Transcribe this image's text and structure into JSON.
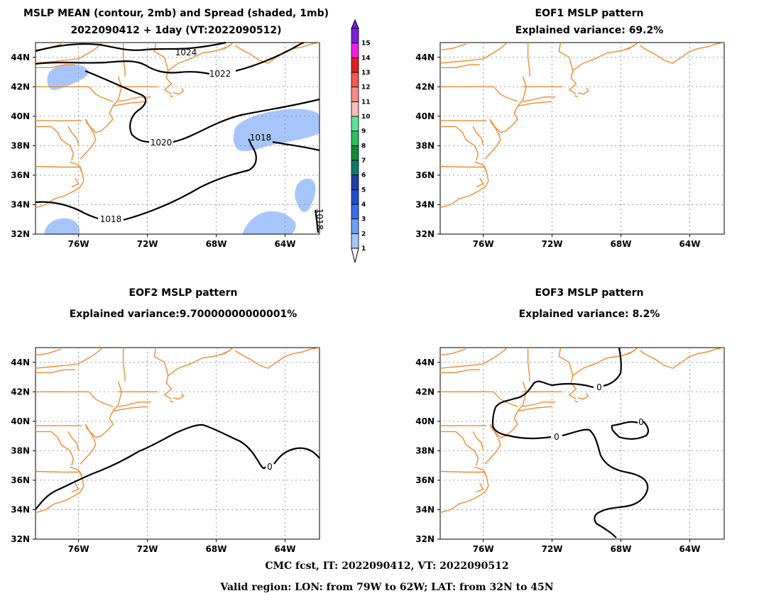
{
  "panels": [
    {
      "title1": "MSLP MEAN (contour, 2mb) and Spread (shaded, 1mb)",
      "title2": "2022090412 + 1day (VT:2022090512)"
    },
    {
      "title1": "EOF1 MSLP pattern",
      "title2": "Explained variance: 69.2%"
    },
    {
      "title1": "EOF2 MSLP pattern",
      "title2": "Explained variance:9.70000000000001%"
    },
    {
      "title1": "EOF3 MSLP pattern",
      "title2": "Explained variance: 8.2%"
    }
  ],
  "axes": {
    "lat_labels": [
      "44N",
      "42N",
      "40N",
      "38N",
      "36N",
      "34N",
      "32N"
    ],
    "lon_labels": [
      "76W",
      "72W",
      "68W",
      "64W"
    ]
  },
  "colorbar": {
    "labels": [
      "1",
      "2",
      "3",
      "4",
      "5",
      "6",
      "7",
      "8",
      "9",
      "10",
      "11",
      "12",
      "13",
      "14",
      "15"
    ],
    "colors": [
      "#c0d6ff",
      "#a6c6fb",
      "#6f9ef5",
      "#3b6ee8",
      "#1f4fcf",
      "#1e3fa3",
      "#0f7a6e",
      "#138c3a",
      "#2fbf5a",
      "#5ee29a",
      "#f7bcb3",
      "#f48f86",
      "#ef5b52",
      "#e2201e",
      "#f41fe4",
      "#7e1fe0"
    ]
  },
  "contour_labels": {
    "panel1": [
      "1024",
      "1022",
      "1020",
      "1018",
      "1018",
      "1018"
    ],
    "eof2": [
      "0"
    ],
    "eof3": [
      "0",
      "0",
      "0"
    ]
  },
  "footer": {
    "line1": "CMC fcst, IT: 2022090412, VT: 2022090512",
    "line2": "Valid region: LON: from 79W to 62W; LAT: from 32N to 45N"
  }
}
